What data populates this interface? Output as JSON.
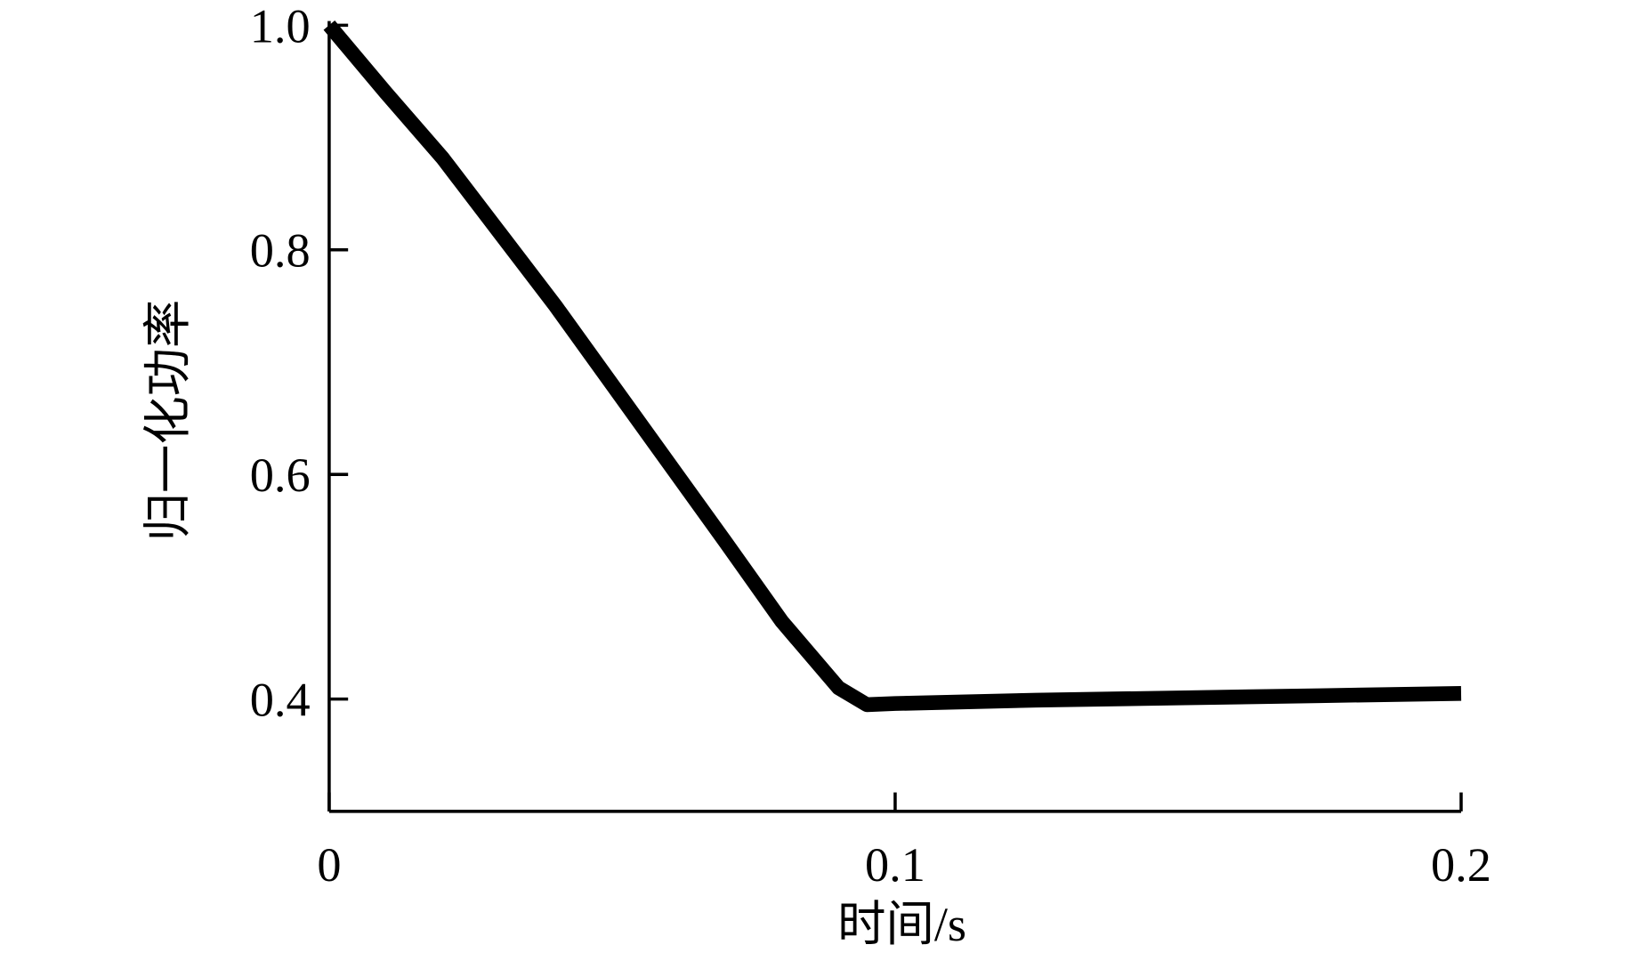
{
  "chart_data": {
    "type": "line",
    "x_label": "时间/s",
    "y_label": "归一化功率",
    "x": [
      0,
      0.01,
      0.02,
      0.03,
      0.04,
      0.05,
      0.06,
      0.07,
      0.08,
      0.09,
      0.095,
      0.1,
      0.125,
      0.15,
      0.175,
      0.2
    ],
    "series": [
      {
        "color": "#000000",
        "values": [
          1.0,
          0.94,
          0.882,
          0.816,
          0.75,
          0.68,
          0.61,
          0.54,
          0.469,
          0.41,
          0.395,
          0.396,
          0.399,
          0.401,
          0.403,
          0.405
        ]
      }
    ],
    "xlim": [
      0,
      0.2
    ],
    "ylim": [
      0.3,
      1.0
    ],
    "xticks": [
      0,
      0.1,
      0.2
    ],
    "yticks": [
      0.4,
      0.6,
      0.8,
      {
        "value": 1,
        "label": "1.0"
      }
    ],
    "grid": false
  }
}
